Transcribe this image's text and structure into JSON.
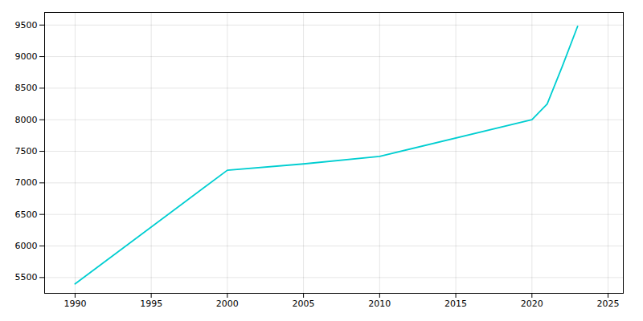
{
  "chart_data": {
    "type": "line",
    "x": [
      1990,
      2000,
      2005,
      2010,
      2020,
      2021,
      2022,
      2023
    ],
    "values": [
      5400,
      7200,
      7300,
      7420,
      8000,
      8250,
      8850,
      9480
    ],
    "color": "#00CED1",
    "xlim": [
      1988,
      2026
    ],
    "ylim": [
      5250,
      9700
    ],
    "xticks": [
      1990,
      1995,
      2000,
      2005,
      2010,
      2015,
      2020,
      2025
    ],
    "yticks": [
      5500,
      6000,
      6500,
      7000,
      7500,
      8000,
      8500,
      9000,
      9500
    ],
    "grid": true
  }
}
